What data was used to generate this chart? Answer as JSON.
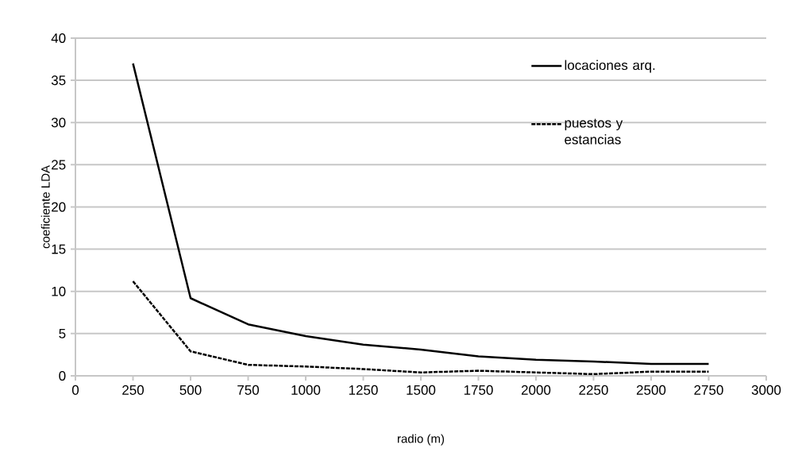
{
  "chart_data": {
    "type": "line",
    "xlabel": "radio (m)",
    "ylabel": "coeficiente LDA",
    "x": [
      250,
      500,
      750,
      1000,
      1250,
      1500,
      1750,
      2000,
      2250,
      2500,
      2750
    ],
    "series": [
      {
        "name": "locaciones arq.",
        "color": "#000000",
        "line_style": "solid",
        "values": [
          37,
          9.2,
          6.1,
          4.7,
          3.7,
          3.1,
          2.3,
          1.9,
          1.7,
          1.4,
          1.4
        ]
      },
      {
        "name": "puestos y estancias",
        "color": "#000000",
        "line_style": "dashed",
        "values": [
          11.2,
          2.9,
          1.3,
          1.1,
          0.8,
          0.4,
          0.6,
          0.4,
          0.2,
          0.5,
          0.5
        ]
      }
    ],
    "xlim": [
      0,
      3000
    ],
    "ylim": [
      0,
      40
    ],
    "xticks": [
      0,
      250,
      500,
      750,
      1000,
      1250,
      1500,
      1750,
      2000,
      2250,
      2500,
      2750,
      3000
    ],
    "yticks": [
      0,
      5,
      10,
      15,
      20,
      25,
      30,
      35,
      40
    ],
    "grid": "y",
    "legend": "top right",
    "marker": "none"
  }
}
